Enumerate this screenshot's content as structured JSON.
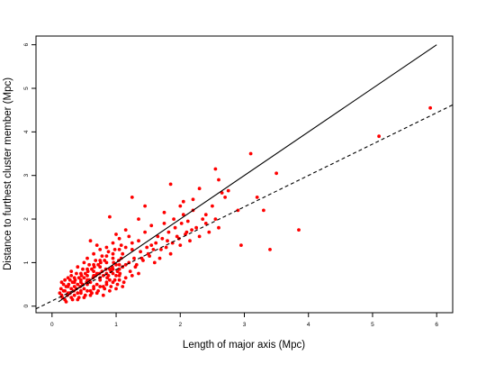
{
  "chart_data": {
    "type": "scatter",
    "title": "",
    "xlabel": "Length of major axis (Mpc)",
    "ylabel": "Distance to furthest cluster member (Mpc)",
    "xlim": [
      -0.25,
      6.25
    ],
    "ylim": [
      -0.15,
      6.2
    ],
    "x_ticks": [
      "0",
      "1",
      "2",
      "3",
      "4",
      "5",
      "6"
    ],
    "y_ticks": [
      "0",
      "1",
      "2",
      "3",
      "4",
      "5",
      "6"
    ],
    "grid": false,
    "legend": "none",
    "point_color": "#ff0000",
    "line_color": "#000000",
    "lines": [
      {
        "style": "solid",
        "slope": 1.0,
        "intercept": 0.0,
        "x_range": [
          0.1,
          6.0
        ]
      },
      {
        "style": "dashed",
        "slope": 0.72,
        "intercept": 0.12,
        "x_range": [
          -0.25,
          6.25
        ]
      }
    ],
    "points": [
      [
        0.15,
        0.25
      ],
      [
        0.2,
        0.35
      ],
      [
        0.25,
        0.45
      ],
      [
        0.3,
        0.2
      ],
      [
        0.35,
        0.55
      ],
      [
        0.4,
        0.3
      ],
      [
        0.45,
        0.6
      ],
      [
        0.5,
        0.4
      ],
      [
        0.55,
        0.7
      ],
      [
        0.6,
        0.35
      ],
      [
        0.65,
        0.8
      ],
      [
        0.7,
        0.5
      ],
      [
        0.75,
        0.9
      ],
      [
        0.8,
        0.45
      ],
      [
        0.85,
        1.0
      ],
      [
        0.9,
        0.6
      ],
      [
        0.95,
        1.1
      ],
      [
        1.0,
        0.7
      ],
      [
        1.05,
        0.85
      ],
      [
        1.1,
        1.2
      ],
      [
        0.2,
        0.15
      ],
      [
        0.3,
        0.4
      ],
      [
        0.4,
        0.5
      ],
      [
        0.5,
        0.65
      ],
      [
        0.6,
        0.55
      ],
      [
        0.7,
        0.75
      ],
      [
        0.8,
        0.7
      ],
      [
        0.9,
        0.85
      ],
      [
        1.0,
        0.95
      ],
      [
        1.1,
        0.9
      ],
      [
        0.25,
        0.3
      ],
      [
        0.35,
        0.25
      ],
      [
        0.45,
        0.35
      ],
      [
        0.55,
        0.5
      ],
      [
        0.65,
        0.45
      ],
      [
        0.75,
        0.6
      ],
      [
        0.85,
        0.55
      ],
      [
        0.95,
        0.75
      ],
      [
        1.05,
        0.7
      ],
      [
        1.15,
        0.95
      ],
      [
        0.18,
        0.5
      ],
      [
        0.28,
        0.6
      ],
      [
        0.38,
        0.75
      ],
      [
        0.48,
        0.85
      ],
      [
        0.58,
        0.95
      ],
      [
        0.68,
        1.05
      ],
      [
        0.78,
        1.15
      ],
      [
        0.88,
        1.25
      ],
      [
        0.98,
        1.3
      ],
      [
        1.08,
        1.4
      ],
      [
        0.22,
        0.1
      ],
      [
        0.32,
        0.15
      ],
      [
        0.42,
        0.2
      ],
      [
        0.52,
        0.25
      ],
      [
        0.62,
        0.3
      ],
      [
        0.72,
        0.35
      ],
      [
        0.82,
        0.4
      ],
      [
        0.92,
        0.45
      ],
      [
        1.02,
        0.5
      ],
      [
        1.12,
        0.55
      ],
      [
        1.2,
        1.0
      ],
      [
        1.25,
        1.3
      ],
      [
        1.3,
        0.9
      ],
      [
        1.35,
        1.5
      ],
      [
        1.4,
        1.1
      ],
      [
        1.45,
        1.7
      ],
      [
        1.5,
        1.2
      ],
      [
        1.55,
        1.4
      ],
      [
        1.6,
        1.0
      ],
      [
        1.65,
        1.6
      ],
      [
        1.7,
        1.3
      ],
      [
        1.75,
        1.9
      ],
      [
        1.8,
        1.5
      ],
      [
        1.85,
        1.2
      ],
      [
        1.9,
        2.0
      ],
      [
        1.95,
        1.6
      ],
      [
        2.0,
        1.4
      ],
      [
        2.05,
        2.1
      ],
      [
        2.1,
        1.7
      ],
      [
        2.15,
        1.5
      ],
      [
        2.2,
        2.2
      ],
      [
        2.25,
        1.8
      ],
      [
        2.3,
        1.6
      ],
      [
        2.35,
        2.0
      ],
      [
        2.4,
        1.9
      ],
      [
        2.45,
        1.7
      ],
      [
        2.5,
        2.3
      ],
      [
        2.55,
        2.0
      ],
      [
        2.6,
        1.8
      ],
      [
        2.65,
        2.6
      ],
      [
        1.25,
        2.5
      ],
      [
        1.45,
        2.3
      ],
      [
        1.85,
        2.8
      ],
      [
        2.05,
        2.4
      ],
      [
        2.3,
        2.7
      ],
      [
        2.55,
        3.15
      ],
      [
        2.6,
        2.9
      ],
      [
        2.7,
        2.5
      ],
      [
        2.75,
        2.65
      ],
      [
        2.9,
        2.2
      ],
      [
        2.95,
        1.4
      ],
      [
        3.1,
        3.5
      ],
      [
        3.2,
        2.5
      ],
      [
        3.3,
        2.2
      ],
      [
        3.4,
        1.3
      ],
      [
        3.5,
        3.05
      ],
      [
        3.85,
        1.75
      ],
      [
        5.1,
        3.9
      ],
      [
        5.9,
        4.55
      ],
      [
        0.9,
        2.05
      ],
      [
        0.6,
        1.5
      ],
      [
        0.7,
        1.4
      ],
      [
        1.0,
        1.65
      ],
      [
        1.15,
        1.75
      ],
      [
        1.35,
        2.0
      ],
      [
        1.55,
        1.85
      ],
      [
        1.75,
        2.15
      ],
      [
        2.0,
        2.3
      ],
      [
        2.2,
        2.45
      ],
      [
        2.4,
        2.1
      ],
      [
        0.3,
        0.8
      ],
      [
        0.4,
        0.9
      ],
      [
        0.5,
        1.0
      ],
      [
        0.55,
        1.1
      ],
      [
        0.65,
        1.2
      ],
      [
        0.75,
        1.3
      ],
      [
        0.85,
        1.35
      ],
      [
        0.95,
        1.45
      ],
      [
        1.05,
        1.55
      ],
      [
        1.2,
        1.6
      ],
      [
        0.12,
        0.3
      ],
      [
        0.14,
        0.4
      ],
      [
        0.16,
        0.2
      ],
      [
        0.18,
        0.35
      ],
      [
        0.22,
        0.45
      ],
      [
        0.24,
        0.25
      ],
      [
        0.26,
        0.5
      ],
      [
        0.28,
        0.3
      ],
      [
        0.32,
        0.55
      ],
      [
        0.34,
        0.35
      ],
      [
        0.36,
        0.6
      ],
      [
        0.38,
        0.4
      ],
      [
        0.42,
        0.65
      ],
      [
        0.44,
        0.45
      ],
      [
        0.46,
        0.7
      ],
      [
        0.48,
        0.5
      ],
      [
        0.52,
        0.75
      ],
      [
        0.54,
        0.55
      ],
      [
        0.56,
        0.8
      ],
      [
        0.58,
        0.6
      ],
      [
        0.62,
        0.85
      ],
      [
        0.64,
        0.65
      ],
      [
        0.66,
        0.9
      ],
      [
        0.68,
        0.7
      ],
      [
        0.72,
        0.95
      ],
      [
        0.74,
        0.75
      ],
      [
        0.76,
        1.0
      ],
      [
        0.78,
        0.8
      ],
      [
        0.82,
        1.05
      ],
      [
        0.84,
        0.85
      ],
      [
        0.86,
        0.65
      ],
      [
        0.88,
        0.7
      ],
      [
        0.92,
        0.8
      ],
      [
        0.94,
        0.9
      ],
      [
        0.96,
        1.0
      ],
      [
        0.98,
        0.6
      ],
      [
        1.02,
        0.8
      ],
      [
        1.04,
        1.05
      ],
      [
        1.06,
        0.75
      ],
      [
        1.08,
        1.1
      ],
      [
        1.22,
        0.8
      ],
      [
        1.28,
        1.1
      ],
      [
        1.32,
        0.95
      ],
      [
        1.38,
        1.25
      ],
      [
        1.42,
        1.05
      ],
      [
        1.48,
        1.35
      ],
      [
        1.52,
        1.15
      ],
      [
        1.58,
        1.3
      ],
      [
        1.62,
        1.45
      ],
      [
        1.68,
        1.1
      ],
      [
        1.72,
        1.55
      ],
      [
        1.78,
        1.35
      ],
      [
        1.82,
        1.7
      ],
      [
        1.88,
        1.45
      ],
      [
        1.92,
        1.8
      ],
      [
        1.98,
        1.55
      ],
      [
        2.02,
        1.9
      ],
      [
        2.08,
        1.65
      ],
      [
        2.12,
        1.95
      ],
      [
        2.18,
        1.75
      ],
      [
        0.2,
        0.6
      ],
      [
        0.3,
        0.7
      ],
      [
        0.4,
        0.15
      ],
      [
        0.5,
        0.2
      ],
      [
        0.6,
        0.25
      ],
      [
        0.7,
        0.3
      ],
      [
        0.8,
        0.25
      ],
      [
        0.9,
        0.35
      ],
      [
        1.0,
        0.4
      ],
      [
        1.1,
        0.45
      ],
      [
        0.45,
        0.3
      ],
      [
        0.55,
        0.35
      ],
      [
        0.65,
        0.4
      ],
      [
        0.75,
        0.45
      ],
      [
        0.85,
        0.5
      ],
      [
        0.95,
        0.55
      ],
      [
        1.05,
        0.6
      ],
      [
        1.15,
        0.65
      ],
      [
        1.25,
        0.7
      ],
      [
        1.35,
        0.75
      ],
      [
        0.35,
        0.65
      ],
      [
        0.45,
        0.75
      ],
      [
        0.55,
        0.85
      ],
      [
        0.65,
        0.95
      ],
      [
        0.75,
        1.05
      ],
      [
        0.85,
        1.15
      ],
      [
        0.95,
        1.2
      ],
      [
        1.05,
        1.3
      ],
      [
        1.15,
        1.35
      ],
      [
        1.25,
        1.45
      ],
      [
        0.15,
        0.55
      ],
      [
        0.25,
        0.65
      ],
      [
        0.35,
        0.45
      ],
      [
        0.45,
        0.55
      ],
      [
        0.55,
        0.6
      ],
      [
        0.65,
        0.7
      ],
      [
        0.75,
        0.65
      ],
      [
        0.85,
        0.75
      ],
      [
        0.95,
        0.85
      ],
      [
        1.05,
        0.95
      ]
    ]
  }
}
